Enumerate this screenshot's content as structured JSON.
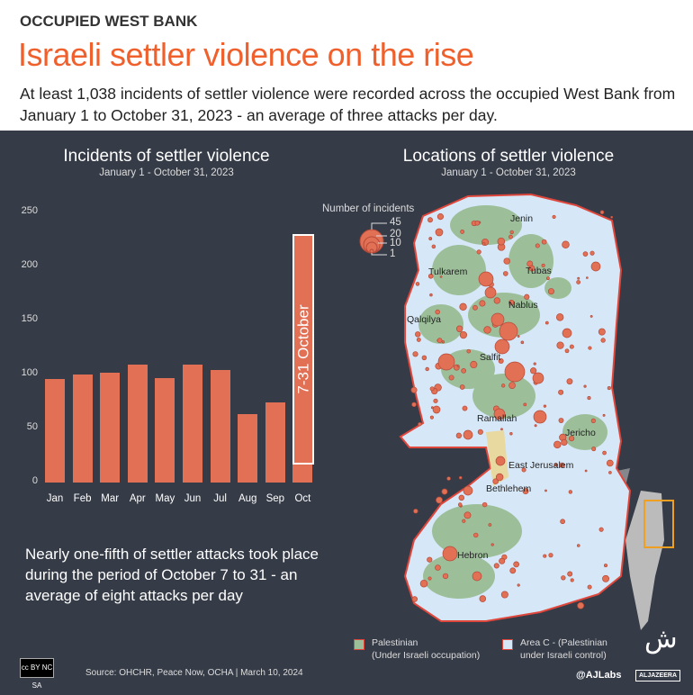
{
  "header": {
    "kicker": "OCCUPIED WEST BANK",
    "title": "Israeli settler violence on the rise",
    "subtitle": "At least 1,038 incidents of settler violence were recorded across the occupied West Bank from January 1 to October 31, 2023 - an average of three attacks per day."
  },
  "chart_data": {
    "type": "bar",
    "title": "Incidents of settler violence",
    "subtitle": "January 1 - October 31,  2023",
    "categories": [
      "Jan",
      "Feb",
      "Mar",
      "Apr",
      "May",
      "Jun",
      "Jul",
      "Aug",
      "Sep",
      "Oct"
    ],
    "values": [
      96,
      100,
      102,
      109,
      97,
      109,
      104,
      63,
      74,
      230
    ],
    "annotation": {
      "label": "7-31 October",
      "range": [
        17,
        230
      ]
    },
    "ylim": [
      0,
      250
    ],
    "yticks": [
      "0",
      "50",
      "100",
      "150",
      "200",
      "250"
    ],
    "color": "#e27055"
  },
  "map": {
    "title": "Locations of settler violence",
    "subtitle": "January 1 - October 31,  2023",
    "size_legend": {
      "title": "Number of incidents",
      "values": [
        "45",
        "20",
        "10",
        "1"
      ]
    },
    "places": [
      "Jenin",
      "Tubas",
      "Tulkarem",
      "Nablus",
      "Qalqilya",
      "Salfit",
      "Ramallah",
      "Jericho",
      "East Jerusalem",
      "Bethlehem",
      "Hebron"
    ],
    "legend": [
      {
        "label1": "Palestinian",
        "label2": "(Under Israeli occupation)",
        "color": "#9cbf9a"
      },
      {
        "label1": "Area C - (Palestinian",
        "label2": "under Israeli control)",
        "color": "#d6e8f8"
      }
    ]
  },
  "note": "Nearly one-fifth of settler attacks took place during the period of October 7 to 31 - an average of eight attacks per day",
  "footer": {
    "cc": "cc BY NC SA",
    "source": "Source:  OHCHR, Peace Now, OCHA  |  March 10, 2024",
    "handle": "@AJLabs",
    "brand": "ALJAZEERA"
  }
}
